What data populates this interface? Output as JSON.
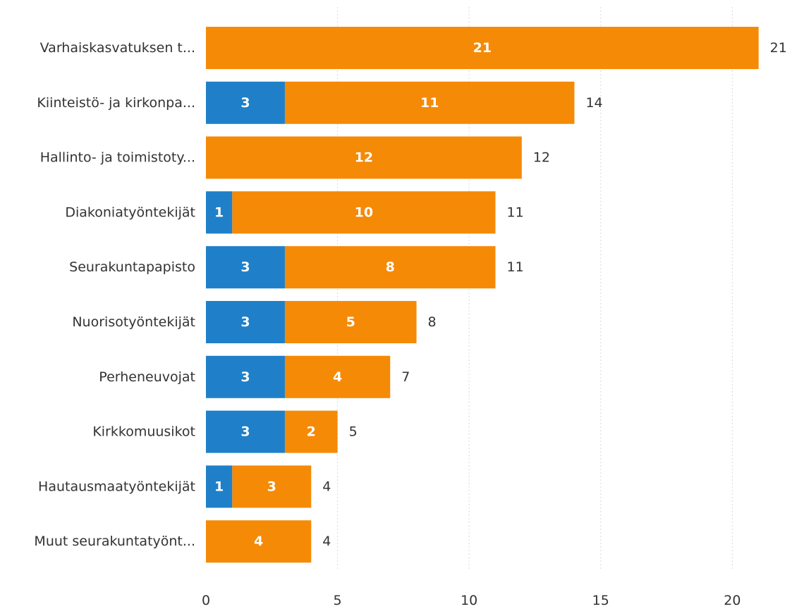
{
  "chart_data": {
    "type": "bar",
    "orientation": "horizontal",
    "stacked": true,
    "categories": [
      "Varhaiskasvatuksen t...",
      "Kiinteistö- ja kirkonpa...",
      "Hallinto- ja toimistoty...",
      "Diakoniatyöntekijät",
      "Seurakuntapapisto",
      "Nuorisotyöntekijät",
      "Perheneuvojat",
      "Kirkkomuusikot",
      "Hautausmaatyöntekijät",
      "Muut seurakuntatyönt..."
    ],
    "series": [
      {
        "color": "#1f80c9",
        "values": [
          0,
          3,
          0,
          1,
          3,
          3,
          3,
          3,
          1,
          0
        ]
      },
      {
        "color": "#f58a07",
        "values": [
          21,
          11,
          12,
          10,
          8,
          5,
          4,
          2,
          3,
          4
        ]
      }
    ],
    "totals": [
      21,
      14,
      12,
      11,
      11,
      8,
      7,
      5,
      4,
      4
    ],
    "xlim": [
      0,
      22
    ],
    "x_ticks": [
      0,
      5,
      10,
      15,
      20
    ],
    "grid": true,
    "legend": "none",
    "title": "",
    "xlabel": "",
    "ylabel": ""
  }
}
